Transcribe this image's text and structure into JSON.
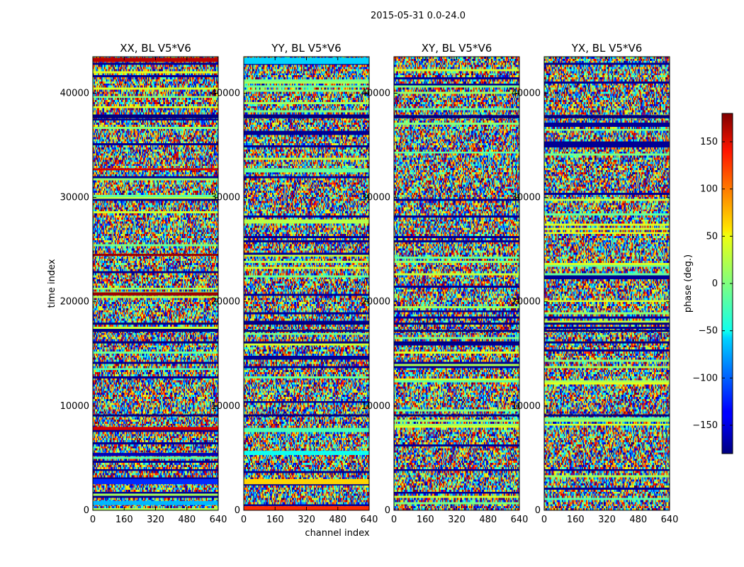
{
  "suptitle": "2015-05-31 0.0-24.0",
  "chart_data": {
    "type": "heatmap",
    "xlabel": "channel index",
    "ylabel": "time index",
    "xlim": [
      0,
      640
    ],
    "ylim": [
      0,
      43500
    ],
    "x_ticks": [
      0,
      160,
      320,
      480,
      640
    ],
    "y_ticks": [
      0,
      10000,
      20000,
      30000,
      40000
    ],
    "panels": [
      {
        "title": "XX, BL V5*V6",
        "bands": [
          {
            "t0": 500,
            "t1": 900,
            "phase": -70
          },
          {
            "t0": 2500,
            "t1": 3000,
            "phase": -120
          },
          {
            "t0": 5200,
            "t1": 5500,
            "phase": -160
          },
          {
            "t0": 7700,
            "t1": 8000,
            "phase": 150
          },
          {
            "t0": 20600,
            "t1": 20900,
            "phase": 170
          },
          {
            "t0": 24400,
            "t1": 24600,
            "phase": 170
          },
          {
            "t0": 32600,
            "t1": 32800,
            "phase": 150
          },
          {
            "t0": 43000,
            "t1": 43400,
            "phase": 160
          }
        ]
      },
      {
        "title": "YY, BL V5*V6",
        "bands": [
          {
            "t0": 0,
            "t1": 400,
            "phase": 120
          },
          {
            "t0": 2500,
            "t1": 3000,
            "phase": 60
          },
          {
            "t0": 5300,
            "t1": 5700,
            "phase": -40
          },
          {
            "t0": 7500,
            "t1": 7900,
            "phase": -20
          },
          {
            "t0": 27500,
            "t1": 27900,
            "phase": 20
          },
          {
            "t0": 32400,
            "t1": 32800,
            "phase": -10
          },
          {
            "t0": 42800,
            "t1": 43400,
            "phase": -60
          }
        ]
      },
      {
        "title": "XY, BL V5*V6",
        "bands": []
      },
      {
        "title": "YX, BL V5*V6",
        "bands": []
      }
    ],
    "common_dark_bands": [
      {
        "t0": 37600,
        "t1": 37900,
        "phase": -180
      },
      {
        "t0": 16000,
        "t1": 16200,
        "phase": -180
      },
      {
        "t0": 17100,
        "t1": 17300,
        "phase": -180
      },
      {
        "t0": 17800,
        "t1": 18000,
        "phase": -180
      },
      {
        "t0": 9000,
        "t1": 9200,
        "phase": -180
      }
    ],
    "colorbar": {
      "label": "phase (deg.)",
      "range": [
        -180,
        180
      ],
      "ticks": [
        150,
        100,
        50,
        0,
        -50,
        -100,
        -150
      ],
      "tick_labels": [
        "150",
        "100",
        "50",
        "0",
        "−50",
        "−100",
        "−150"
      ],
      "colormap": "jet"
    }
  }
}
